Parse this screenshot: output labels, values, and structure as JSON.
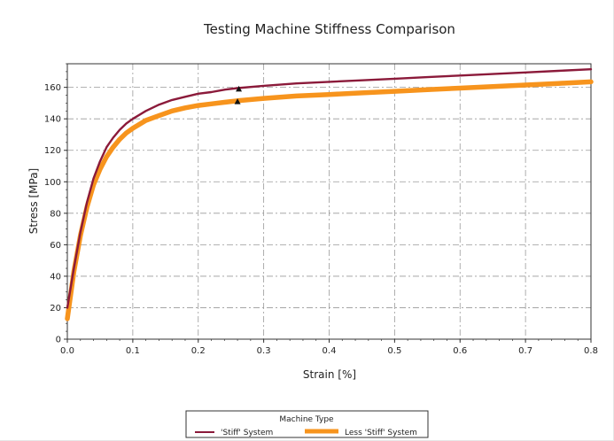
{
  "chart_data": {
    "type": "line",
    "title": "Testing Machine Stiffness Comparison",
    "xlabel": "Strain  [%]",
    "ylabel": "Stress [MPa]",
    "xlim": [
      0.0,
      0.8
    ],
    "ylim": [
      0,
      175
    ],
    "x_ticks": [
      "0.0",
      "0.1",
      "0.2",
      "0.3",
      "0.4",
      "0.5",
      "0.6",
      "0.7",
      "0.8"
    ],
    "y_ticks": [
      "0",
      "20",
      "40",
      "60",
      "80",
      "100",
      "120",
      "140",
      "160"
    ],
    "grid": true,
    "legend": {
      "title": "Machine Type",
      "placement": "bottom-center"
    },
    "series": [
      {
        "name": "'Stiff' System",
        "color": "#8b1a3a",
        "x": [
          0.0,
          0.01,
          0.02,
          0.03,
          0.04,
          0.05,
          0.06,
          0.07,
          0.08,
          0.09,
          0.1,
          0.12,
          0.14,
          0.16,
          0.18,
          0.2,
          0.22,
          0.24,
          0.26,
          0.3,
          0.35,
          0.4,
          0.45,
          0.5,
          0.55,
          0.6,
          0.65,
          0.7,
          0.75,
          0.8
        ],
        "y": [
          20,
          45,
          68,
          87,
          102,
          113,
          122,
          128,
          133,
          137,
          140,
          145,
          149,
          152,
          154,
          156,
          157,
          158.5,
          159.5,
          161,
          162.5,
          163.5,
          164.5,
          165.5,
          166.5,
          167.5,
          168.5,
          169.5,
          170.5,
          171.5
        ]
      },
      {
        "name": "Less 'Stiff' System",
        "color": "#f7941d",
        "x": [
          0.0,
          0.01,
          0.02,
          0.03,
          0.04,
          0.05,
          0.06,
          0.07,
          0.08,
          0.09,
          0.1,
          0.12,
          0.14,
          0.16,
          0.18,
          0.2,
          0.22,
          0.24,
          0.26,
          0.3,
          0.35,
          0.4,
          0.45,
          0.5,
          0.55,
          0.6,
          0.65,
          0.7,
          0.75,
          0.8
        ],
        "y": [
          13,
          43,
          66,
          84,
          98,
          108,
          116,
          122,
          127,
          131,
          134,
          139,
          142,
          145,
          147,
          148.5,
          149.5,
          150.5,
          151.5,
          153,
          154.5,
          155.5,
          156.5,
          157.5,
          158.5,
          159.5,
          160.5,
          161.5,
          162.5,
          163.5
        ]
      }
    ],
    "markers": [
      {
        "x": 0.262,
        "y": 159
      },
      {
        "x": 0.26,
        "y": 151
      }
    ]
  }
}
